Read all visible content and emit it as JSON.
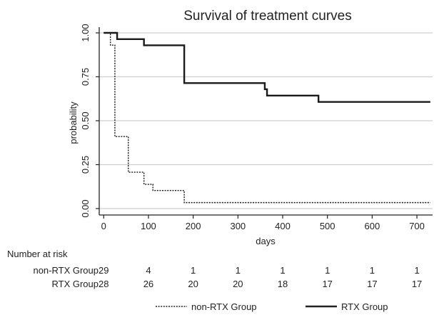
{
  "chart_data": {
    "type": "line",
    "subtype": "kaplan-meier step",
    "title": "Survival of treatment curves",
    "xlabel": "days",
    "ylabel": "probability",
    "xlim": [
      -10,
      735
    ],
    "ylim": [
      0,
      1
    ],
    "x_ticks": [
      0,
      100,
      200,
      300,
      400,
      500,
      600,
      700
    ],
    "y_ticks": [
      "0.00",
      "0.25",
      "0.50",
      "0.75",
      "1.00"
    ],
    "grid": "horizontal",
    "legend_position": "bottom",
    "series": [
      {
        "name": "non-RTX Group",
        "line_style": "dotted",
        "x": [
          0,
          15,
          25,
          30,
          55,
          90,
          110,
          180,
          730
        ],
        "y": [
          1.0,
          0.93,
          0.41,
          0.41,
          0.207,
          0.138,
          0.103,
          0.034,
          0.034
        ]
      },
      {
        "name": "RTX Group",
        "line_style": "solid",
        "x": [
          0,
          30,
          90,
          180,
          360,
          365,
          480,
          730
        ],
        "y": [
          1.0,
          0.964,
          0.929,
          0.714,
          0.679,
          0.643,
          0.607,
          0.607
        ]
      }
    ],
    "risk_table": {
      "title": "Number at risk",
      "rows": [
        {
          "label": "non-RTX Group",
          "values": [
            "29",
            "4",
            "1",
            "1",
            "1",
            "1",
            "1",
            "1"
          ]
        },
        {
          "label": "RTX Group",
          "values": [
            "28",
            "26",
            "20",
            "20",
            "18",
            "17",
            "17",
            "17"
          ]
        }
      ]
    }
  }
}
